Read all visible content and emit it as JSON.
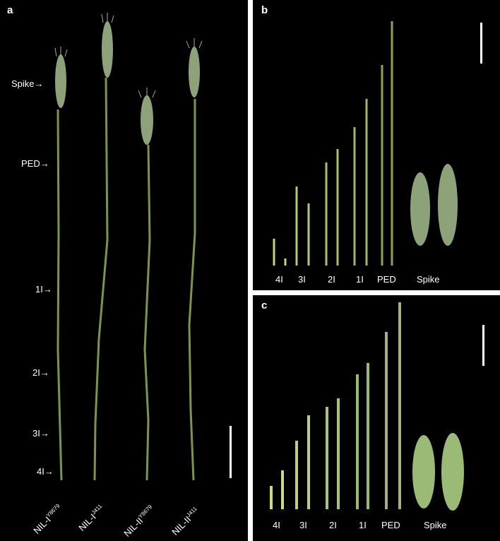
{
  "panel_a": {
    "label": "a",
    "markers": {
      "spike": "Spike",
      "ped": "PED",
      "i1": "1I",
      "i2": "2I",
      "i3": "3I",
      "i4": "4I"
    },
    "arrow": "→",
    "lines": [
      {
        "base": "NIL-I",
        "sup": "Y8679"
      },
      {
        "base": "NIL-I",
        "sup": "J411"
      },
      {
        "base": "NIL-II",
        "sup": "Y8679"
      },
      {
        "base": "NIL-II",
        "sup": "J411"
      }
    ]
  },
  "panel_b": {
    "label": "b",
    "labels": [
      "4I",
      "3I",
      "2I",
      "1I",
      "PED",
      "Spike"
    ]
  },
  "panel_c": {
    "label": "c",
    "labels": [
      "4I",
      "3I",
      "2I",
      "1I",
      "PED",
      "Spike"
    ]
  },
  "colors": {
    "background": "#000000",
    "stem": "#7d9a4a",
    "stem_light": "#b8cf6a",
    "spike": "#8fa27a",
    "scale_bar": "#ffffff"
  }
}
